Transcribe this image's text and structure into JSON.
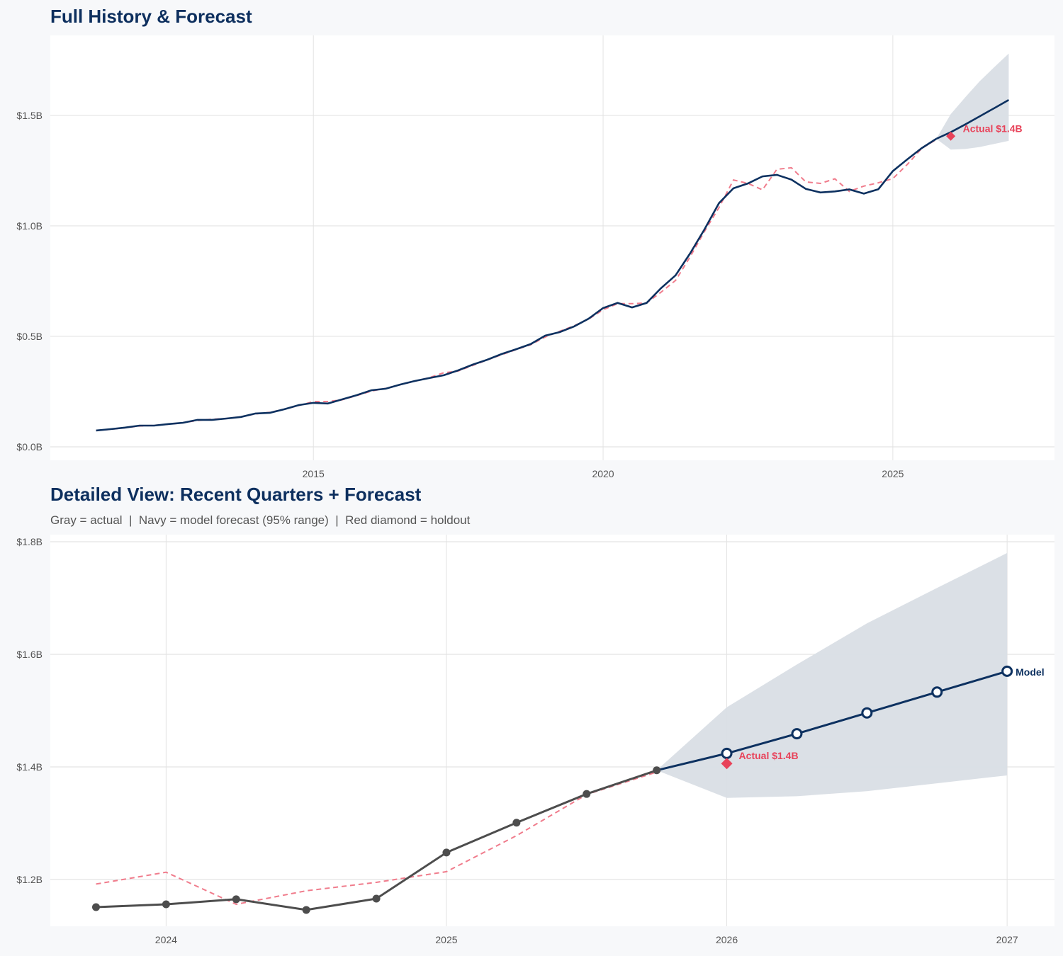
{
  "colors": {
    "actual_top": "#0d3160",
    "actual_detail": "#4d4d4d",
    "fitted": "#f07c8c",
    "forecast": "#0d3160",
    "band": "#d9dee5",
    "holdout": "#e8435a",
    "title": "#0d2f5e"
  },
  "chart_data": [
    {
      "type": "line",
      "title": "Full History & Forecast",
      "x_ticks": [
        "2015",
        "2020",
        "2025"
      ],
      "x_tick_values": [
        2015,
        2020,
        2025
      ],
      "y_ticks": [
        "$0.0B",
        "$0.5B",
        "$1.0B",
        "$1.5B"
      ],
      "y_tick_values": [
        0,
        0.5,
        1.0,
        1.5
      ],
      "xlim": [
        2010.46,
        2027.79
      ],
      "ylim": [
        -0.061,
        1.862
      ],
      "grid": true,
      "unit": "$B",
      "annotation": "Actual $1.4B"
    },
    {
      "type": "line",
      "title": "Detailed View: Recent Quarters + Forecast",
      "subtitle": "Gray = actual  |  Navy = model forecast (95% range)  |  Red diamond = holdout",
      "x_ticks": [
        "2024",
        "2025",
        "2026",
        "2027"
      ],
      "x_tick_values": [
        2024,
        2025,
        2026,
        2027
      ],
      "y_ticks": [
        "$1.2B",
        "$1.4B",
        "$1.6B",
        "$1.8B"
      ],
      "y_tick_values": [
        1.2,
        1.4,
        1.6,
        1.8
      ],
      "xlim": [
        2023.587,
        2027.169
      ],
      "ylim": [
        1.117,
        1.8126
      ],
      "grid": true,
      "detail_from": 2023.75,
      "annotation": "Actual $1.4B",
      "model_label": "Model"
    }
  ],
  "series": {
    "history_x": [
      2011.25,
      2011.5,
      2011.75,
      2012,
      2012.25,
      2012.5,
      2012.75,
      2013,
      2013.25,
      2013.5,
      2013.75,
      2014,
      2014.25,
      2014.5,
      2014.75,
      2015,
      2015.25,
      2015.5,
      2015.75,
      2016,
      2016.25,
      2016.5,
      2016.75,
      2017,
      2017.25,
      2017.5,
      2017.75,
      2018,
      2018.25,
      2018.5,
      2018.75,
      2019,
      2019.25,
      2019.5,
      2019.75,
      2020,
      2020.25,
      2020.5,
      2020.75,
      2021,
      2021.25,
      2021.5,
      2021.75,
      2022,
      2022.25,
      2022.5,
      2022.75,
      2023,
      2023.25,
      2023.5,
      2023.75,
      2024,
      2024.25,
      2024.5,
      2024.75,
      2025,
      2025.25,
      2025.5,
      2025.75
    ],
    "actual": [
      0.074,
      0.08,
      0.087,
      0.096,
      0.096,
      0.103,
      0.109,
      0.122,
      0.122,
      0.128,
      0.135,
      0.151,
      0.154,
      0.17,
      0.189,
      0.199,
      0.196,
      0.215,
      0.234,
      0.256,
      0.263,
      0.282,
      0.298,
      0.311,
      0.324,
      0.346,
      0.372,
      0.394,
      0.42,
      0.442,
      0.465,
      0.503,
      0.519,
      0.545,
      0.58,
      0.628,
      0.651,
      0.631,
      0.651,
      0.718,
      0.776,
      0.875,
      0.984,
      1.103,
      1.17,
      1.192,
      1.224,
      1.231,
      1.209,
      1.167,
      1.151,
      1.156,
      1.165,
      1.146,
      1.166,
      1.248,
      1.301,
      1.352,
      1.394
    ],
    "fitted": [
      0.074,
      0.079,
      0.086,
      0.094,
      0.097,
      0.102,
      0.109,
      0.119,
      0.125,
      0.128,
      0.136,
      0.149,
      0.156,
      0.17,
      0.187,
      0.205,
      0.205,
      0.213,
      0.232,
      0.252,
      0.265,
      0.281,
      0.297,
      0.313,
      0.335,
      0.343,
      0.368,
      0.393,
      0.417,
      0.44,
      0.462,
      0.497,
      0.523,
      0.548,
      0.578,
      0.62,
      0.648,
      0.648,
      0.651,
      0.7,
      0.753,
      0.859,
      0.975,
      1.083,
      1.208,
      1.192,
      1.163,
      1.256,
      1.263,
      1.199,
      1.192,
      1.213,
      1.156,
      1.18,
      1.195,
      1.214,
      1.278,
      1.351,
      1.391
    ],
    "forecast_x": [
      2025.75,
      2026,
      2026.25,
      2026.5,
      2026.75,
      2027
    ],
    "forecast": [
      1.394,
      1.424,
      1.459,
      1.496,
      1.533,
      1.57
    ],
    "upper_95": [
      1.394,
      1.506,
      1.582,
      1.655,
      1.718,
      1.78
    ],
    "lower_95": [
      1.394,
      1.345,
      1.348,
      1.357,
      1.371,
      1.385
    ],
    "holdout": {
      "x": 2026.0,
      "value": 1.406
    }
  }
}
